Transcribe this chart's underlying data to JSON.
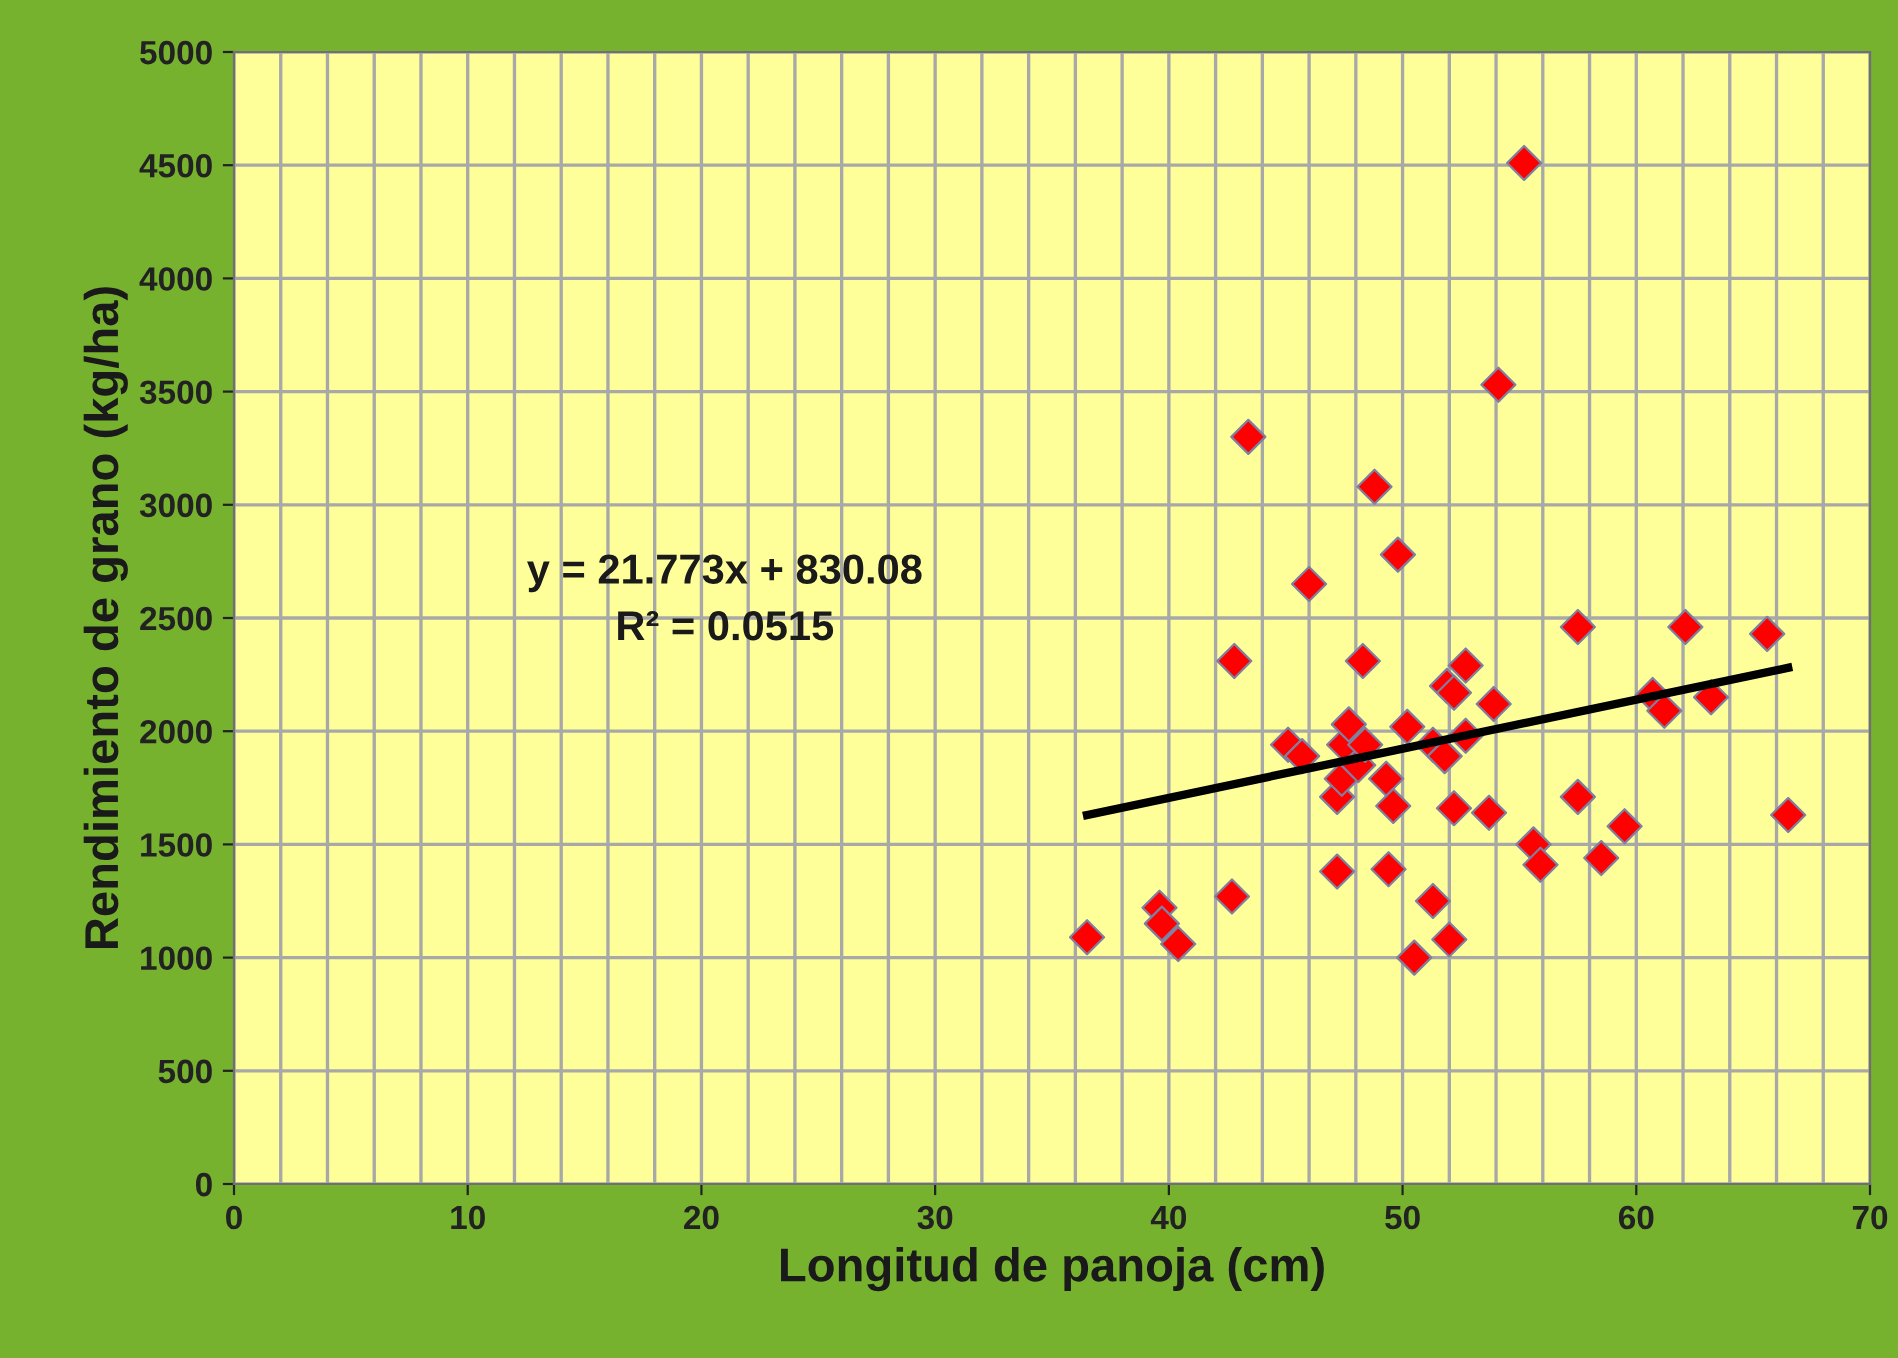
{
  "chart_data": {
    "type": "scatter",
    "xlabel": "Longitud de panoja (cm)",
    "ylabel": "Rendimiento de grano (kg/ha)",
    "xlim": [
      0,
      70
    ],
    "ylim": [
      0,
      5000
    ],
    "xticks": [
      0,
      10,
      20,
      30,
      40,
      50,
      60,
      70
    ],
    "yticks": [
      0,
      500,
      1000,
      1500,
      2000,
      2500,
      3000,
      3500,
      4000,
      4500,
      5000
    ],
    "grid": true,
    "legend": false,
    "annotations": [
      "y = 21.773x + 830.08",
      "R² = 0.0515"
    ],
    "series": [
      {
        "color": "#ff0000",
        "marker": "diamond",
        "x": [
          36.5,
          39.6,
          39.7,
          40.4,
          42.7,
          42.8,
          43.4,
          45.1,
          45.7,
          46.0,
          47.2,
          47.2,
          47.4,
          47.5,
          47.7,
          48.3,
          48.8,
          48.1,
          48.4,
          49.3,
          49.6,
          49.4,
          49.8,
          50.2,
          50.5,
          51.3,
          51.3,
          51.8,
          51.9,
          52.2,
          52.7,
          52.0,
          52.2,
          52.7,
          53.9,
          53.7,
          54.1,
          55.2,
          55.6,
          55.9,
          57.5,
          57.5,
          58.5,
          59.5,
          60.7,
          61.2,
          62.1,
          63.2,
          65.6,
          66.5
        ],
        "values": [
          1090,
          1220,
          1150,
          1060,
          1270,
          2310,
          3300,
          1940,
          1890,
          2650,
          1380,
          1710,
          1790,
          1940,
          2030,
          2310,
          3080,
          1850,
          1940,
          1790,
          1670,
          1390,
          2780,
          2020,
          1000,
          1250,
          1940,
          1890,
          2200,
          2170,
          2290,
          1080,
          1660,
          1980,
          2120,
          1640,
          3530,
          4510,
          1500,
          1410,
          2460,
          1710,
          1440,
          1580,
          2160,
          2090,
          2460,
          2150,
          2430,
          1630
        ]
      },
      {
        "type": "line",
        "color": "#000000",
        "marker": "none",
        "line_style": "solid",
        "x": [
          36.5,
          66.5
        ],
        "values": [
          1630,
          2280
        ]
      }
    ]
  }
}
